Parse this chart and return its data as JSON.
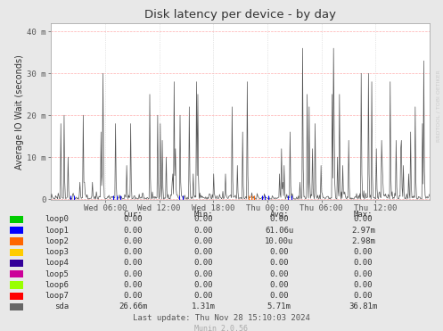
{
  "title": "Disk latency per device - by day",
  "ylabel": "Average IO Wait (seconds)",
  "watermark": "RRDTOOL / TOBI OETIKER",
  "ytick_labels": [
    "0",
    "10 m",
    "20 m",
    "30 m",
    "40 m"
  ],
  "ylim": [
    -0.3,
    42
  ],
  "background_color": "#e8e8e8",
  "plot_bg_color": "#ffffff",
  "grid_color_h": "#ff9999",
  "grid_color_v": "#cccccc",
  "title_color": "#333333",
  "legend": [
    {
      "label": "loop0",
      "color": "#00cc00"
    },
    {
      "label": "loop1",
      "color": "#0000ff"
    },
    {
      "label": "loop2",
      "color": "#ff6600"
    },
    {
      "label": "loop3",
      "color": "#ffcc00"
    },
    {
      "label": "loop4",
      "color": "#330099"
    },
    {
      "label": "loop5",
      "color": "#cc0099"
    },
    {
      "label": "loop6",
      "color": "#99ff00"
    },
    {
      "label": "loop7",
      "color": "#ff0000"
    },
    {
      "label": "sda",
      "color": "#666666"
    }
  ],
  "table_headers": [
    "Cur:",
    "Min:",
    "Avg:",
    "Max:"
  ],
  "table_data": [
    [
      "0.00",
      "0.00",
      "0.00",
      "0.00"
    ],
    [
      "0.00",
      "0.00",
      "61.06u",
      "2.97m"
    ],
    [
      "0.00",
      "0.00",
      "10.00u",
      "2.98m"
    ],
    [
      "0.00",
      "0.00",
      "0.00",
      "0.00"
    ],
    [
      "0.00",
      "0.00",
      "0.00",
      "0.00"
    ],
    [
      "0.00",
      "0.00",
      "0.00",
      "0.00"
    ],
    [
      "0.00",
      "0.00",
      "0.00",
      "0.00"
    ],
    [
      "0.00",
      "0.00",
      "0.00",
      "0.00"
    ],
    [
      "26.66m",
      "1.31m",
      "5.71m",
      "36.81m"
    ]
  ],
  "last_update": "Last update: Thu Nov 28 15:10:03 2024",
  "munin_version": "Munin 2.0.56",
  "xaxis_labels": [
    "Wed 06:00",
    "Wed 12:00",
    "Wed 18:00",
    "Thu 00:00",
    "Thu 06:00",
    "Thu 12:00"
  ],
  "line_color": "#555555",
  "spike_color_blue": "#0000ff",
  "spike_color_orange": "#ff6600"
}
